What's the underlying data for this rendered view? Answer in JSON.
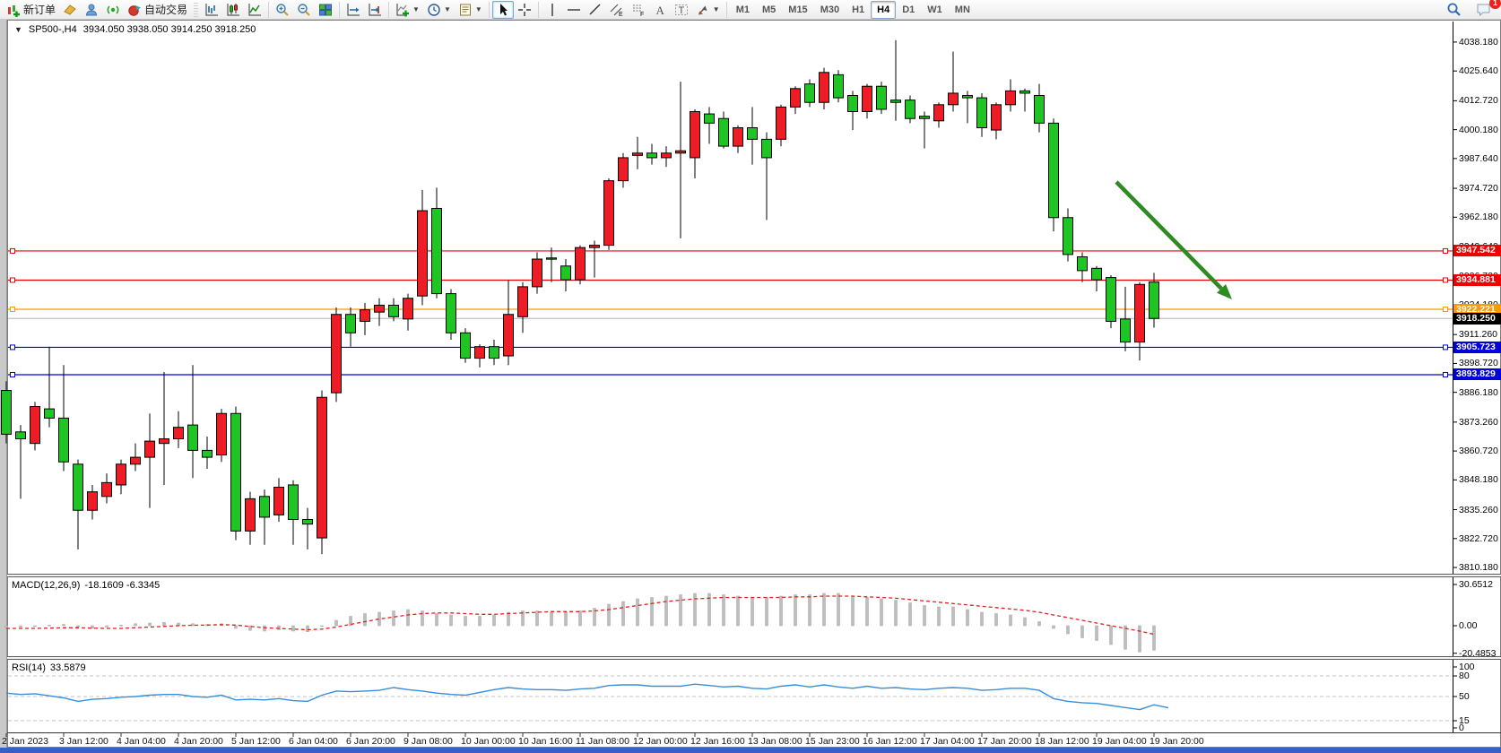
{
  "toolbar": {
    "new_order_label": "新订单",
    "auto_trading_label": "自动交易",
    "timeframes": [
      "M1",
      "M5",
      "M15",
      "M30",
      "H1",
      "H4",
      "D1",
      "W1",
      "MN"
    ],
    "active_timeframe": "H4",
    "chat_badge": "1"
  },
  "chart": {
    "title_symbol": "SP500-,H4",
    "title_ohlc": "3934.050 3938.050 3914.250 3918.250"
  },
  "indicators": {
    "macd": {
      "label": "MACD(12,26,9)",
      "values": "-18.1609 -6.3345"
    },
    "rsi": {
      "label": "RSI(14)",
      "value": "33.5879"
    }
  },
  "chart_data": {
    "type": "candlestick",
    "symbol": "SP500-",
    "timeframe": "H4",
    "up_color": "#ee1c25",
    "down_color": "#1fc425",
    "ylim": [
      3806.3,
      4047.1
    ],
    "price_axis_labels": [
      "4038.180",
      "4025.640",
      "4012.720",
      "4000.180",
      "3987.640",
      "3974.720",
      "3962.180",
      "3949.640",
      "3936.720",
      "3924.180",
      "3911.260",
      "3898.720",
      "3886.180",
      "3873.260",
      "3860.720",
      "3848.180",
      "3835.260",
      "3822.720",
      "3810.180"
    ],
    "x_labels": [
      "2 Jan 2023",
      "3 Jan 12:00",
      "4 Jan 04:00",
      "4 Jan 20:00",
      "5 Jan 12:00",
      "6 Jan 04:00",
      "6 Jan 20:00",
      "9 Jan 08:00",
      "10 Jan 00:00",
      "10 Jan 16:00",
      "11 Jan 08:00",
      "12 Jan 00:00",
      "12 Jan 16:00",
      "13 Jan 08:00",
      "15 Jan 23:00",
      "16 Jan 12:00",
      "17 Jan 04:00",
      "17 Jan 20:00",
      "18 Jan 12:00",
      "19 Jan 04:00",
      "19 Jan 20:00"
    ],
    "candles": [
      [
        3887,
        3891,
        3864,
        3868
      ],
      [
        3869,
        3872,
        3840,
        3866
      ],
      [
        3864,
        3882,
        3861,
        3880
      ],
      [
        3879,
        3906,
        3871,
        3875
      ],
      [
        3875,
        3898,
        3852,
        3856
      ],
      [
        3855,
        3857,
        3818,
        3835
      ],
      [
        3835,
        3846,
        3831,
        3843
      ],
      [
        3841,
        3851,
        3838,
        3847
      ],
      [
        3846,
        3857,
        3842,
        3855
      ],
      [
        3855,
        3864,
        3852,
        3858
      ],
      [
        3858,
        3877,
        3836,
        3865
      ],
      [
        3864,
        3895,
        3846,
        3866
      ],
      [
        3866,
        3878,
        3862,
        3871
      ],
      [
        3872,
        3898,
        3849,
        3861
      ],
      [
        3861,
        3867,
        3853,
        3858
      ],
      [
        3859,
        3879,
        3856,
        3877
      ],
      [
        3877,
        3880,
        3822,
        3826
      ],
      [
        3826,
        3843,
        3820,
        3840
      ],
      [
        3841,
        3844,
        3820,
        3832
      ],
      [
        3833,
        3849,
        3830,
        3845
      ],
      [
        3846,
        3848,
        3820,
        3831
      ],
      [
        3831,
        3836,
        3818,
        3829
      ],
      [
        3823,
        3887,
        3816,
        3884
      ],
      [
        3886,
        3923,
        3882,
        3920
      ],
      [
        3920,
        3923,
        3906,
        3912
      ],
      [
        3917,
        3925,
        3911,
        3922
      ],
      [
        3921,
        3927,
        3915,
        3924
      ],
      [
        3924,
        3927,
        3917,
        3919
      ],
      [
        3918,
        3929,
        3913,
        3927
      ],
      [
        3928,
        3974,
        3924,
        3965
      ],
      [
        3966,
        3975,
        3927,
        3929
      ],
      [
        3929,
        3931,
        3909,
        3912
      ],
      [
        3912,
        3914,
        3899,
        3901
      ],
      [
        3901,
        3907,
        3897,
        3906
      ],
      [
        3906,
        3909,
        3898,
        3901
      ],
      [
        3902,
        3935,
        3898,
        3920
      ],
      [
        3919,
        3934,
        3912,
        3932
      ],
      [
        3932,
        3947,
        3929,
        3944
      ],
      [
        3944.5,
        3949,
        3934,
        3944
      ],
      [
        3941,
        3944,
        3930,
        3935
      ],
      [
        3935,
        3950,
        3933,
        3949
      ],
      [
        3949,
        3952,
        3936,
        3950
      ],
      [
        3950,
        3979,
        3948,
        3978
      ],
      [
        3978,
        3990,
        3975,
        3988
      ],
      [
        3989,
        3997,
        3983,
        3990
      ],
      [
        3990,
        3994,
        3985,
        3988
      ],
      [
        3988,
        3993,
        3984,
        3990
      ],
      [
        3990,
        4021,
        3953,
        3991
      ],
      [
        3988,
        4009,
        3979,
        4008
      ],
      [
        4007,
        4010,
        3994,
        4003
      ],
      [
        4005,
        4008,
        3992,
        3993
      ],
      [
        3993,
        4002,
        3990,
        4001
      ],
      [
        4001,
        4010,
        3985,
        3996
      ],
      [
        3996,
        3999,
        3961,
        3988
      ],
      [
        3996,
        4011,
        3993,
        4010
      ],
      [
        4010,
        4019,
        4007,
        4018
      ],
      [
        4020,
        4022,
        4010,
        4012
      ],
      [
        4012,
        4027,
        4009,
        4025
      ],
      [
        4024,
        4026,
        4012,
        4014
      ],
      [
        4015,
        4017,
        4000,
        4008
      ],
      [
        4008,
        4020,
        4005,
        4019
      ],
      [
        4019,
        4021,
        4007,
        4009
      ],
      [
        4013,
        4039,
        4004,
        4012
      ],
      [
        4013,
        4015,
        4003,
        4005
      ],
      [
        4006,
        4008,
        3992,
        4005
      ],
      [
        4004,
        4012,
        4001,
        4011
      ],
      [
        4011,
        4034,
        4008,
        4016
      ],
      [
        4015,
        4017,
        4003,
        4014
      ],
      [
        4014,
        4016,
        3997,
        4001
      ],
      [
        4000,
        4012,
        3996,
        4011
      ],
      [
        4011,
        4022,
        4008,
        4017
      ],
      [
        4017,
        4018,
        4008,
        4016
      ],
      [
        4015,
        4020,
        3999,
        4003
      ],
      [
        4003,
        4005,
        3956,
        3962
      ],
      [
        3962,
        3966,
        3943,
        3946
      ],
      [
        3945,
        3947,
        3934,
        3939
      ],
      [
        3940,
        3941,
        3930,
        3935
      ],
      [
        3936,
        3937,
        3914,
        3917
      ],
      [
        3918,
        3932,
        3904,
        3908
      ],
      [
        3908,
        3934,
        3900,
        3933
      ],
      [
        3934.05,
        3938.05,
        3914.25,
        3918.25
      ]
    ],
    "horizontal_lines": [
      {
        "price": 3947.542,
        "label": "3947.542",
        "color": "#ee0000"
      },
      {
        "price": 3934.881,
        "label": "3934.881",
        "color": "#ee0000"
      },
      {
        "price": 3922.221,
        "label": "3922.221",
        "color": "#ff9900"
      },
      {
        "price": 3905.723,
        "label": "3905.723",
        "color": "#0000dd"
      },
      {
        "price": 3893.829,
        "label": "3893.829",
        "color": "#0000dd"
      }
    ],
    "current_price": {
      "price": 3918.25,
      "label": "3918.250",
      "line_color": "#c0c0c0",
      "tag_color": "#000000"
    },
    "annotations": [
      {
        "type": "arrow",
        "color": "#2e8b22",
        "from": [
          1245,
          203
        ],
        "to": [
          1374,
          334
        ]
      }
    ],
    "macd": {
      "axis_labels": [
        "30.6512",
        "0.00",
        "-20.4853"
      ],
      "histogram": [
        -1.5,
        -1,
        -0.5,
        0.5,
        1,
        -1,
        -2,
        -1,
        0.5,
        1.5,
        2,
        2.5,
        2,
        1.5,
        1,
        1.5,
        -2,
        -3.5,
        -4,
        -3,
        -4,
        -4.5,
        0,
        4,
        7,
        9,
        10,
        11,
        12,
        11,
        9,
        8,
        7,
        7,
        8,
        10,
        11,
        11,
        10,
        10,
        11,
        13,
        16,
        18,
        20,
        21,
        22,
        23,
        24,
        24,
        23,
        22,
        21,
        21,
        22,
        23,
        23,
        24,
        24,
        22,
        21,
        20,
        19,
        17,
        15,
        14,
        14,
        12,
        10,
        9,
        8,
        6,
        3,
        -2,
        -6,
        -9,
        -11,
        -14,
        -17.5,
        -19.5,
        -18.16
      ],
      "signal": [
        -2,
        -2,
        -2,
        -1.8,
        -1.5,
        -1.5,
        -1.8,
        -2,
        -2,
        -1.5,
        -1,
        -0.5,
        0,
        0.3,
        0.5,
        0.8,
        0.5,
        -0.5,
        -1.5,
        -2,
        -2.5,
        -3,
        -2.5,
        -1,
        1,
        3,
        5,
        6.5,
        8,
        9,
        9.5,
        9.5,
        9,
        8.5,
        8.5,
        9,
        9.5,
        10,
        10.5,
        10.5,
        10.5,
        11,
        12,
        13.5,
        15,
        16.5,
        18,
        19,
        20,
        20.5,
        21,
        21,
        21,
        21,
        21,
        21.5,
        21.5,
        22,
        22,
        22,
        21.5,
        21,
        20.5,
        19.5,
        18.5,
        17.5,
        16.5,
        15.5,
        14.5,
        13.5,
        12.5,
        11.5,
        10,
        8,
        6,
        4,
        2,
        0,
        -2,
        -4,
        -6.33
      ]
    },
    "rsi": {
      "axis_labels": [
        "100",
        "80",
        "50",
        "15",
        "0"
      ],
      "levels": [
        80,
        50,
        15
      ],
      "series": [
        55,
        53,
        54,
        51,
        48,
        43,
        46,
        47,
        49,
        50,
        52,
        53,
        53,
        50,
        49,
        52,
        45,
        46,
        45,
        47,
        44,
        43,
        52,
        58,
        57,
        58,
        59,
        63,
        60,
        58,
        55,
        53,
        52,
        56,
        60,
        63,
        61,
        60,
        60,
        59,
        61,
        62,
        66,
        67,
        67,
        65,
        65,
        65,
        68,
        66,
        64,
        65,
        62,
        61,
        65,
        67,
        64,
        67,
        64,
        62,
        65,
        62,
        63,
        61,
        60,
        62,
        63,
        62,
        59,
        60,
        62,
        62,
        59,
        47,
        43,
        41,
        40,
        37,
        34,
        31,
        38,
        33.59
      ]
    }
  }
}
